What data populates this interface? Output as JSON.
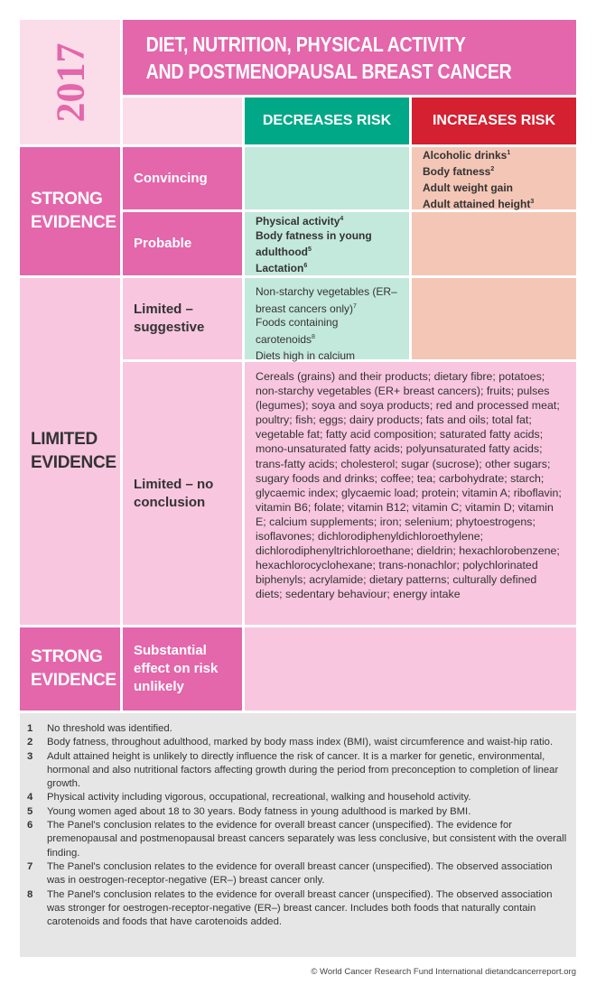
{
  "year": "2017",
  "title_line1": "DIET, NUTRITION, PHYSICAL ACTIVITY",
  "title_line2": "AND POSTMENOPAUSAL BREAST CANCER",
  "headers": {
    "decreases": "DECREASES RISK",
    "increases": "INCREASES RISK"
  },
  "colors": {
    "dark_pink": "#e466ab",
    "light_pink": "#fbdde9",
    "teal": "#00a887",
    "red": "#d42030",
    "mint": "#c3e8dc",
    "peach": "#f4c6b6"
  },
  "evidence": {
    "strong": "STRONG EVIDENCE",
    "limited": "LIMITED EVIDENCE",
    "strong2": "STRONG EVIDENCE"
  },
  "levels": {
    "convincing": "Convincing",
    "probable": "Probable",
    "limited_suggestive": "Limited – suggestive",
    "limited_no_conclusion": "Limited – no conclusion",
    "substantial": "Substantial effect on risk unlikely"
  },
  "convincing_increases": [
    {
      "t": "Alcoholic drinks",
      "s": "1"
    },
    {
      "t": "Body fatness",
      "s": "2"
    },
    {
      "t": "Adult weight gain",
      "s": ""
    },
    {
      "t": "Adult attained height",
      "s": "3"
    }
  ],
  "probable_decreases": [
    {
      "t": "Physical activity",
      "s": "4"
    },
    {
      "t": "Body fatness in young adulthood",
      "s": "5"
    },
    {
      "t": "Lactation",
      "s": "6"
    }
  ],
  "suggestive_decreases": [
    {
      "t": "Non-starchy vegetables (ER– breast cancers only)",
      "s": "7"
    },
    {
      "t": "Foods containing carotenoids",
      "s": "8"
    },
    {
      "t": "Diets high in calcium",
      "s": ""
    }
  ],
  "no_conclusion": "Cereals (grains) and their products; dietary fibre; potatoes; non-starchy vegetables (ER+ breast cancers); fruits; pulses (legumes); soya and soya products; red and processed meat; poultry; fish; eggs; dairy products; fats and oils; total fat; vegetable fat; fatty acid composition; saturated fatty acids; mono-unsaturated fatty acids; polyunsaturated fatty acids; trans-fatty acids; cholesterol; sugar (sucrose); other sugars; sugary foods and drinks; coffee; tea; carbohydrate; starch; glycaemic index; glycaemic load; protein; vitamin A; riboflavin; vitamin B6; folate; vitamin B12; vitamin C; vitamin D; vitamin E; calcium supplements; iron; selenium; phytoestrogens; isoflavones; dichlorodiphenyldichloroethylene; dichlorodiphenyltrichloroethane; dieldrin; hexachlorobenzene; hexachlorocyclohexane; trans-nonachlor; polychlorinated biphenyls; acrylamide; dietary patterns; culturally defined diets; sedentary behaviour; energy intake",
  "footnotes": [
    {
      "n": "1",
      "t": "No threshold was identified."
    },
    {
      "n": "2",
      "t": "Body fatness, throughout adulthood, marked by body mass index (BMI), waist circumference and waist-hip ratio."
    },
    {
      "n": "3",
      "t": "Adult attained height is unlikely to directly influence the risk of cancer. It is a marker for genetic, environmental, hormonal and also nutritional factors affecting growth during the period from preconception to completion of linear growth."
    },
    {
      "n": "4",
      "t": "Physical activity including vigorous, occupational, recreational, walking and household activity."
    },
    {
      "n": "5",
      "t": "Young women aged about 18 to 30 years. Body fatness in young adulthood is marked by BMI."
    },
    {
      "n": "6",
      "t": "The Panel's conclusion relates to the evidence for overall breast cancer (unspecified). The evidence for premenopausal and postmenopausal breast cancers separately was less conclusive, but consistent with the overall finding."
    },
    {
      "n": "7",
      "t": "The Panel's conclusion relates to the evidence for overall breast cancer (unspecified). The observed association was in oestrogen-receptor-negative (ER–) breast cancer only."
    },
    {
      "n": "8",
      "t": "The Panel's conclusion relates to the evidence for overall breast cancer (unspecified). The observed association was stronger for oestrogen-receptor-negative (ER–) breast cancer. Includes both foods that naturally contain carotenoids and foods that have carotenoids added."
    }
  ],
  "footer": "© World Cancer Research Fund International  dietandcancerreport.org"
}
